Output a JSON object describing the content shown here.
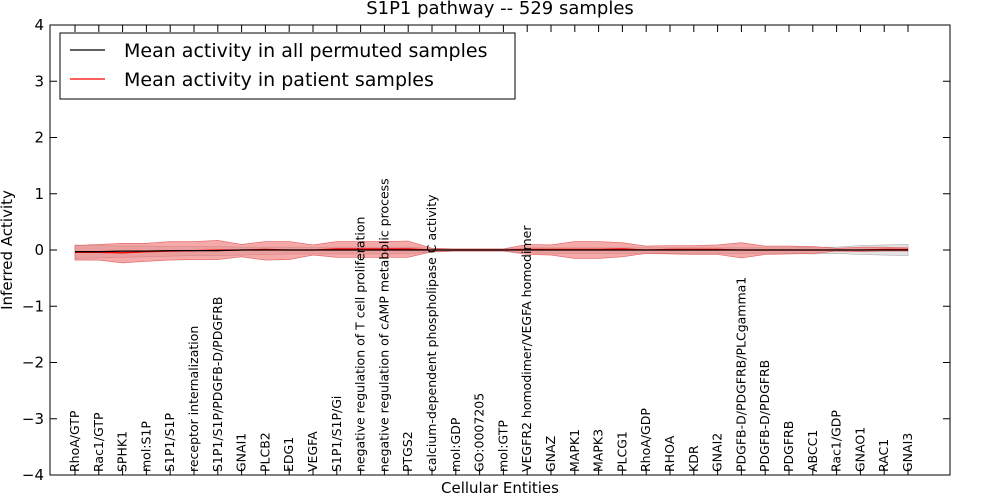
{
  "chart_data": {
    "type": "line",
    "title": "S1P1 pathway -- 529 samples",
    "xlabel": "Cellular Entities",
    "ylabel": "Inferred Activity",
    "ylim": [
      -4,
      4
    ],
    "yticks": [
      -4,
      -3,
      -2,
      -1,
      0,
      1,
      2,
      3,
      4
    ],
    "ytick_labels": [
      "−4",
      "−3",
      "−2",
      "−1",
      "0",
      "1",
      "2",
      "3",
      "4"
    ],
    "grid": false,
    "legend_position": "top-left",
    "categories": [
      "RhoA/GTP",
      "Rac1/GTP",
      "SPHK1",
      "mol:S1P",
      "S1P1/S1P",
      "receptor internalization",
      "S1P1/S1P/PDGFB-D/PDGFRB",
      "GNAI1",
      "PLCB2",
      "EDG1",
      "VEGFA",
      "S1P1/S1P/Gi",
      "negative regulation of T cell proliferation",
      "negative regulation of cAMP metabolic process",
      "PTGS2",
      "calcium-dependent phospholipase C activity",
      "mol:GDP",
      "GO:0007205",
      "mol:GTP",
      "VEGFR2 homodimer/VEGFA homodimer",
      "GNAZ",
      "MAPK1",
      "MAPK3",
      "PLCG1",
      "RhoA/GDP",
      "RHOA",
      "KDR",
      "GNAI2",
      "PDGFB-D/PDGFRB/PLCgamma1",
      "PDGFB-D/PDGFRB",
      "PDGFRB",
      "ABCC1",
      "Rac1/GDP",
      "GNAO1",
      "RAC1",
      "GNAI3"
    ],
    "series": [
      {
        "name": "Mean activity in all permuted samples",
        "color": "#000000",
        "values": [
          -0.03,
          -0.03,
          -0.02,
          -0.02,
          -0.01,
          -0.01,
          -0.01,
          0.0,
          0.0,
          0.0,
          0.0,
          0.0,
          0.0,
          0.0,
          0.0,
          0.0,
          0.0,
          0.0,
          0.0,
          0.0,
          0.0,
          0.0,
          0.0,
          0.0,
          0.0,
          0.0,
          0.0,
          0.0,
          0.0,
          0.0,
          0.0,
          0.0,
          0.0,
          0.0,
          0.0,
          0.0
        ],
        "band_upper": [
          0.09,
          0.08,
          0.07,
          0.07,
          0.06,
          0.06,
          0.06,
          0.05,
          0.05,
          0.05,
          0.05,
          0.05,
          0.05,
          0.05,
          0.05,
          0.03,
          0.02,
          0.02,
          0.02,
          0.04,
          0.04,
          0.04,
          0.04,
          0.04,
          0.04,
          0.04,
          0.04,
          0.04,
          0.04,
          0.04,
          0.04,
          0.05,
          0.05,
          0.08,
          0.09,
          0.1
        ],
        "band_lower": [
          -0.15,
          -0.14,
          -0.13,
          -0.12,
          -0.11,
          -0.1,
          -0.1,
          -0.09,
          -0.08,
          -0.07,
          -0.07,
          -0.07,
          -0.07,
          -0.07,
          -0.06,
          -0.04,
          -0.02,
          -0.02,
          -0.02,
          -0.05,
          -0.06,
          -0.06,
          -0.06,
          -0.06,
          -0.06,
          -0.06,
          -0.06,
          -0.06,
          -0.06,
          -0.06,
          -0.06,
          -0.07,
          -0.06,
          -0.08,
          -0.09,
          -0.1
        ]
      },
      {
        "name": "Mean activity in patient samples",
        "color": "#ff0000",
        "values": [
          -0.04,
          -0.04,
          -0.05,
          -0.03,
          -0.02,
          -0.01,
          0.0,
          0.0,
          0.01,
          0.0,
          0.0,
          0.02,
          0.02,
          0.02,
          0.02,
          0.0,
          0.0,
          0.0,
          0.0,
          0.01,
          0.01,
          0.01,
          0.01,
          0.02,
          0.0,
          0.01,
          0.01,
          0.01,
          0.0,
          0.0,
          0.0,
          0.0,
          0.0,
          0.0,
          0.01,
          0.01
        ],
        "band_upper": [
          0.08,
          0.1,
          0.12,
          0.12,
          0.15,
          0.15,
          0.17,
          0.1,
          0.15,
          0.15,
          0.09,
          0.15,
          0.15,
          0.15,
          0.16,
          0.03,
          0.02,
          0.02,
          0.02,
          0.1,
          0.09,
          0.15,
          0.15,
          0.13,
          0.07,
          0.08,
          0.08,
          0.09,
          0.13,
          0.07,
          0.07,
          0.06,
          0.03,
          0.05,
          0.05,
          0.04
        ],
        "band_lower": [
          -0.18,
          -0.18,
          -0.23,
          -0.2,
          -0.18,
          -0.17,
          -0.17,
          -0.12,
          -0.18,
          -0.17,
          -0.09,
          -0.13,
          -0.13,
          -0.13,
          -0.13,
          -0.03,
          -0.02,
          -0.02,
          -0.02,
          -0.08,
          -0.09,
          -0.15,
          -0.15,
          -0.12,
          -0.06,
          -0.07,
          -0.08,
          -0.08,
          -0.14,
          -0.08,
          -0.07,
          -0.06,
          -0.02,
          -0.03,
          -0.02,
          -0.02
        ]
      }
    ]
  }
}
